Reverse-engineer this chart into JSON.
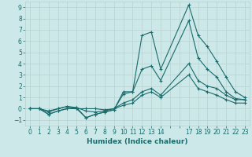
{
  "title": "",
  "xlabel": "Humidex (Indice chaleur)",
  "ylabel": "",
  "bg_color": "#cce8e8",
  "grid_color": "#b8d0d0",
  "line_color": "#1a6b6b",
  "xlim": [
    -0.5,
    23.5
  ],
  "ylim": [
    -1.5,
    9.5
  ],
  "xticks": [
    0,
    1,
    2,
    3,
    4,
    5,
    6,
    7,
    8,
    9,
    10,
    11,
    12,
    13,
    14,
    17,
    18,
    19,
    20,
    21,
    22,
    23
  ],
  "yticks": [
    -1,
    0,
    1,
    2,
    3,
    4,
    5,
    6,
    7,
    8,
    9
  ],
  "lines": [
    {
      "x": [
        0,
        1,
        2,
        3,
        4,
        5,
        6,
        7,
        8,
        9,
        10,
        11,
        12,
        13,
        14,
        17,
        18,
        19,
        20,
        21,
        22,
        23
      ],
      "y": [
        0,
        0,
        -0.5,
        -0.2,
        0,
        0,
        -0.8,
        -0.5,
        -0.3,
        -0.1,
        1.5,
        1.5,
        6.5,
        6.8,
        3.5,
        9.2,
        6.5,
        5.5,
        4.2,
        2.8,
        1.5,
        1.0
      ]
    },
    {
      "x": [
        0,
        1,
        2,
        3,
        4,
        5,
        6,
        7,
        8,
        9,
        10,
        11,
        12,
        13,
        14,
        17,
        18,
        19,
        20,
        21,
        22,
        23
      ],
      "y": [
        0,
        0,
        -0.5,
        -0.2,
        0,
        0.1,
        -0.8,
        -0.5,
        -0.3,
        -0.1,
        1.3,
        1.5,
        3.5,
        3.8,
        2.5,
        7.8,
        4.5,
        3.5,
        2.8,
        1.5,
        0.9,
        0.8
      ]
    },
    {
      "x": [
        0,
        1,
        2,
        3,
        4,
        5,
        6,
        7,
        8,
        9,
        10,
        11,
        12,
        13,
        14,
        17,
        18,
        19,
        20,
        21,
        22,
        23
      ],
      "y": [
        0,
        0,
        -0.3,
        0,
        0.2,
        0.1,
        -0.2,
        -0.3,
        -0.2,
        0,
        0.5,
        0.8,
        1.5,
        1.8,
        1.2,
        4.0,
        2.5,
        2.0,
        1.8,
        1.2,
        0.8,
        0.8
      ]
    },
    {
      "x": [
        0,
        1,
        2,
        3,
        4,
        5,
        6,
        7,
        8,
        9,
        10,
        11,
        12,
        13,
        14,
        17,
        18,
        19,
        20,
        21,
        22,
        23
      ],
      "y": [
        0,
        0,
        -0.2,
        0,
        0.2,
        0,
        0,
        0,
        -0.1,
        0,
        0.3,
        0.5,
        1.2,
        1.5,
        1.0,
        3.0,
        1.8,
        1.5,
        1.2,
        0.8,
        0.5,
        0.5
      ]
    }
  ]
}
